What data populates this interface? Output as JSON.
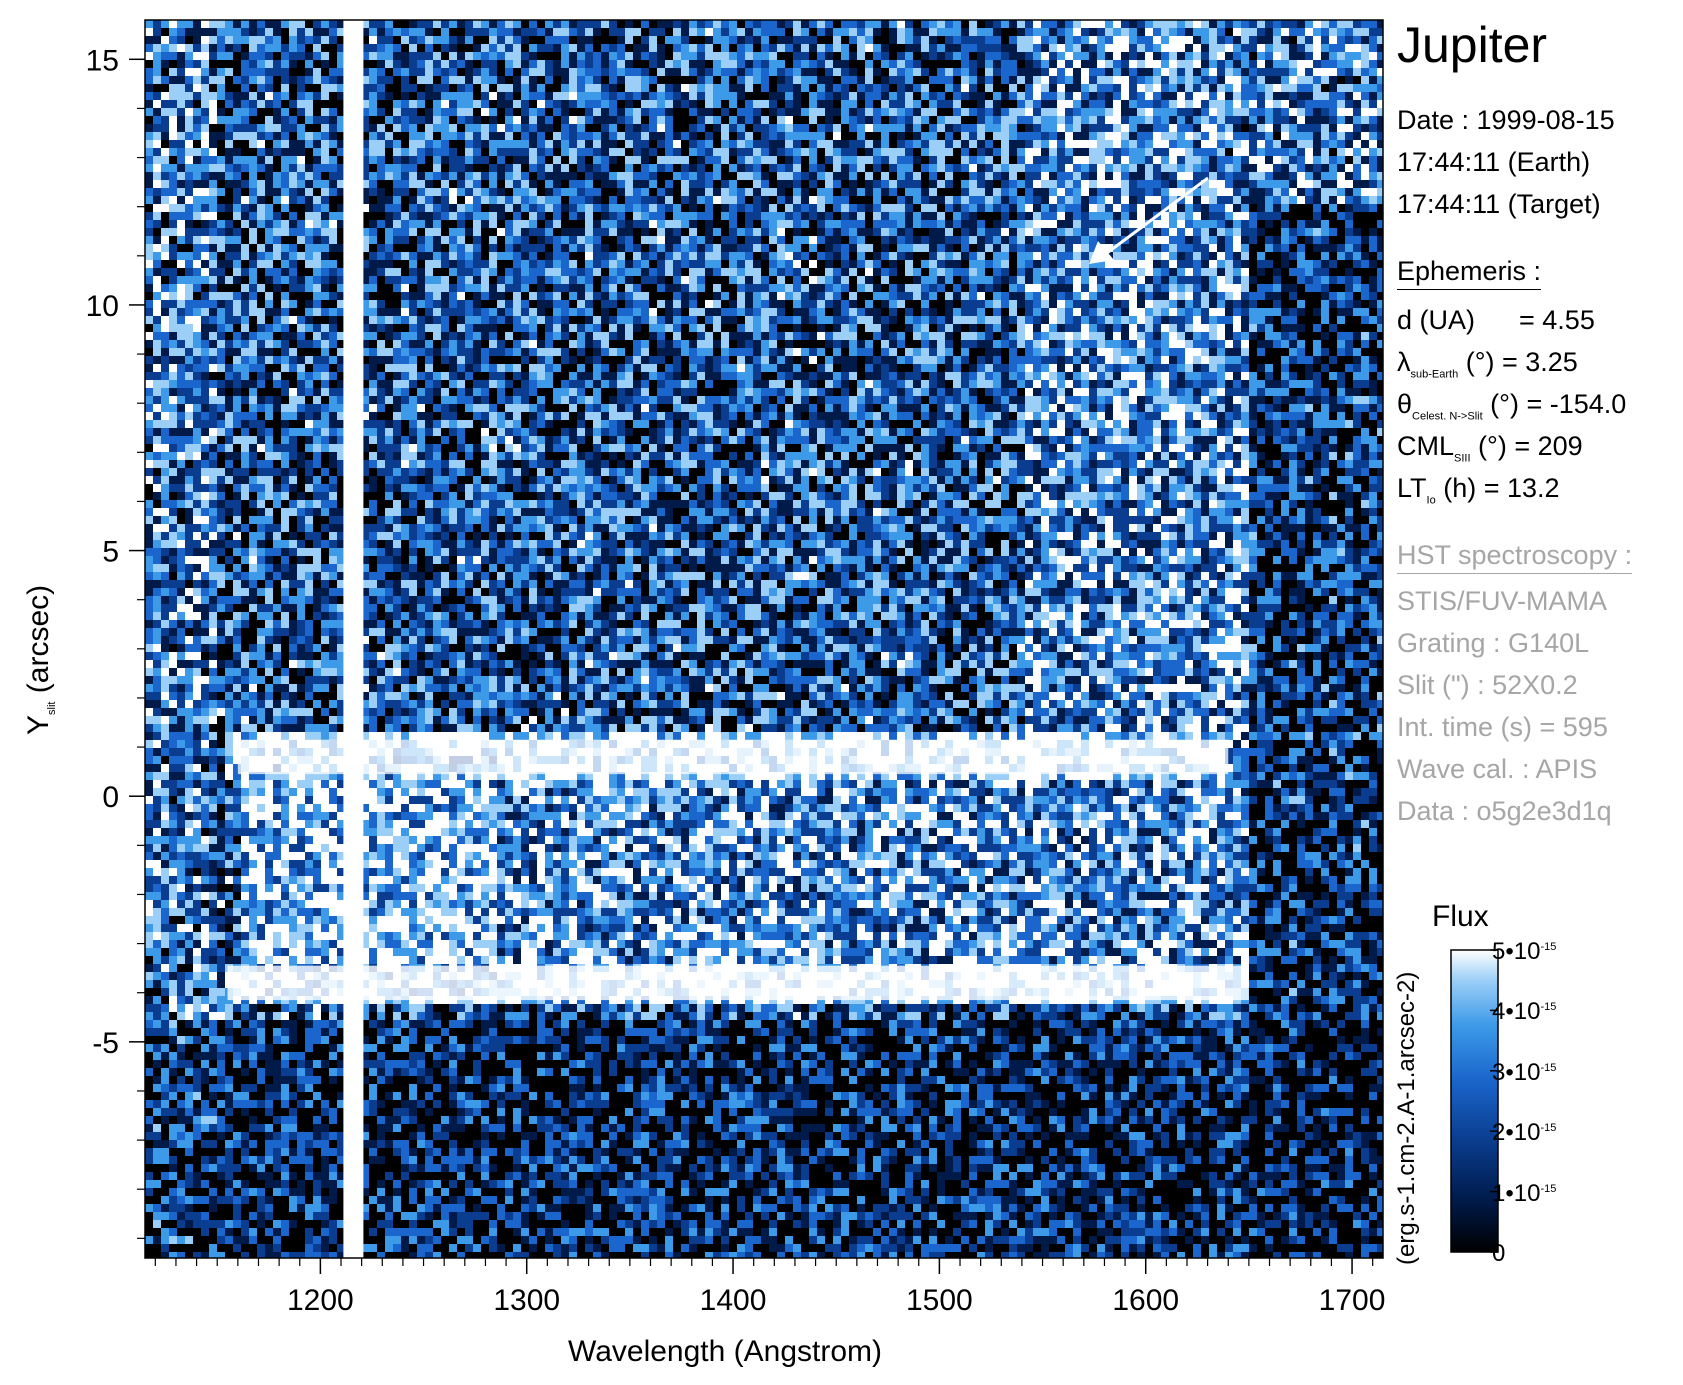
{
  "chart_data": {
    "type": "heatmap",
    "title": "Jupiter",
    "xlabel": "Wavelength (Angstrom)",
    "ylabel_main": "Y",
    "ylabel_sub": "slit",
    "ylabel_unit": "(arcsec)",
    "xlim": [
      1115,
      1715
    ],
    "ylim": [
      -9.4,
      15.8
    ],
    "x_ticks": [
      1200,
      1300,
      1400,
      1500,
      1600,
      1700
    ],
    "x_tick_labels": [
      "1200",
      "1300",
      "1400",
      "1500",
      "1600",
      "1700"
    ],
    "y_ticks": [
      15,
      10,
      5,
      0,
      -5
    ],
    "y_tick_labels": [
      "15",
      "10",
      "5",
      "0",
      "-5"
    ],
    "colorscale": [
      "#000000",
      "#001a4a",
      "#0a3d8f",
      "#1a66cc",
      "#3d9ae8",
      "#9ccff7",
      "#ffffff"
    ],
    "colorbar": {
      "title": "Flux",
      "range": [
        0,
        5e-15
      ],
      "ticks": [
        0,
        1e-15,
        2e-15,
        3e-15,
        4e-15,
        5e-15
      ],
      "tick_labels": [
        "0",
        "1•10",
        "2•10",
        "3•10",
        "4•10",
        "5•10"
      ],
      "tick_exponent": "-15",
      "unit": "(erg.s-1.cm-2.A-1.arcsec-2)"
    },
    "features": {
      "lyman_alpha_wavelength": 1216,
      "disk_y_range": [
        -4,
        0.8
      ],
      "bright_band_y": [
        0.8,
        -3.8
      ]
    }
  },
  "info": {
    "date": "Date : 1999-08-15",
    "time_earth": "17:44:11 (Earth)",
    "time_target": "17:44:11 (Target)",
    "ephemeris_title": "Ephemeris :",
    "d_label": "d (UA)",
    "d_value": "= 4.55",
    "lambda_symbol": "λ",
    "lambda_sub": "sub-Earth",
    "lambda_rest": "(°)  = 3.25",
    "theta_symbol": "θ",
    "theta_sub": "Celest. N->Slit",
    "theta_rest": "(°) = -154.0",
    "cml_label": "CML",
    "cml_sub": "SIII",
    "cml_rest": "(°) = 209",
    "lt_label": "LT",
    "lt_sub": "Io",
    "lt_rest": "(h) = 13.2",
    "hst_title": "HST spectroscopy :",
    "instrument": "STIS/FUV-MAMA",
    "grating": "Grating : G140L",
    "slit": "Slit (\") : 52X0.2",
    "int_time": "Int. time (s) = 595",
    "wave_cal": "Wave cal. : APIS",
    "data_id": "Data : o5g2e3d1q"
  }
}
